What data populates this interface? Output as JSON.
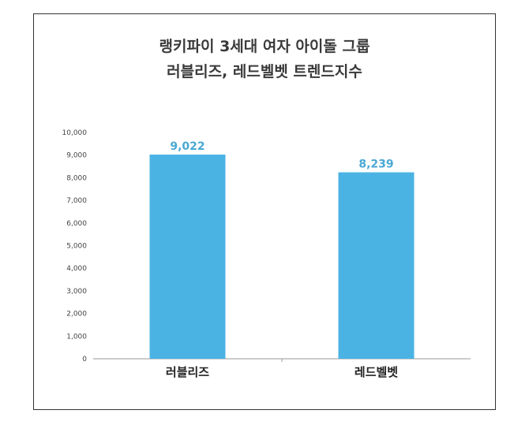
{
  "chart_data": {
    "type": "bar",
    "title_lines": [
      "랭키파이 3세대 여자 아이돌 그룹",
      "러블리즈, 레드벨벳 트렌드지수"
    ],
    "categories": [
      "러블리즈",
      "레드벨벳"
    ],
    "values": [
      9022,
      8239
    ],
    "value_labels": [
      "9,022",
      "8,239"
    ],
    "ylim": [
      0,
      10000
    ],
    "yticks": [
      0,
      1000,
      2000,
      3000,
      4000,
      5000,
      6000,
      7000,
      8000,
      9000,
      10000
    ],
    "ytick_labels": [
      "0",
      "1,000",
      "2,000",
      "3,000",
      "4,000",
      "5,000",
      "6,000",
      "7,000",
      "8,000",
      "9,000",
      "10,000"
    ],
    "grid": false,
    "bar_color": "#4bb3e4",
    "label_color": "#4aa8d4"
  }
}
